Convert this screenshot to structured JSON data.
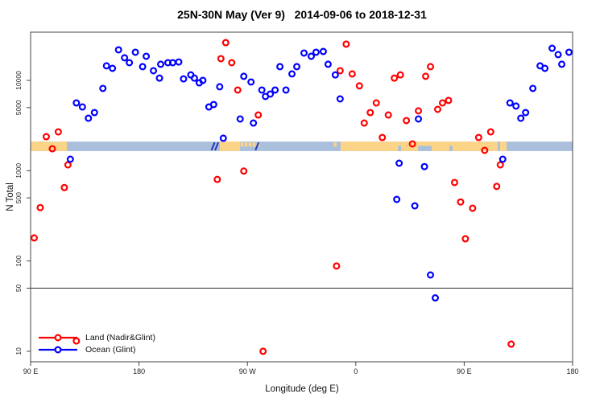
{
  "chart_data": {
    "type": "scatter",
    "title": "25N-30N May (Ver 9)   2014-09-06 to 2018-12-31",
    "xlabel": "Longitude (deg E)",
    "ylabel": "N Total",
    "x_axis": {
      "unit": "degrees east (wrapping)",
      "range_deg": [
        90,
        540
      ],
      "ticks": [
        {
          "deg": 90,
          "label": "90 E"
        },
        {
          "deg": 180,
          "label": "180"
        },
        {
          "deg": 270,
          "label": "90 W"
        },
        {
          "deg": 360,
          "label": "0"
        },
        {
          "deg": 450,
          "label": "90 E"
        },
        {
          "deg": 540,
          "label": "180"
        }
      ]
    },
    "y_axis": {
      "scale": "log10",
      "range": [
        7.6,
        34000
      ],
      "ticks": [
        {
          "v": 10000,
          "label": "10000"
        },
        {
          "v": 5000,
          "label": "5000"
        },
        {
          "v": 1000,
          "label": "1000"
        },
        {
          "v": 500,
          "label": "500"
        },
        {
          "v": 100,
          "label": "100"
        },
        {
          "v": 50,
          "label": "50"
        },
        {
          "v": 10,
          "label": "10"
        }
      ]
    },
    "reference_line_y": 50,
    "legend": [
      {
        "label": "Land (Nadir&Glint)",
        "color": "#ff0000"
      },
      {
        "label": "Ocean (Glint)",
        "color": "#0000ff"
      }
    ],
    "series": [
      {
        "name": "Land (Nadir&Glint)",
        "color": "#ff0000",
        "points": [
          [
            93,
            180
          ],
          [
            98,
            390
          ],
          [
            103,
            2380
          ],
          [
            108,
            1750
          ],
          [
            113,
            2690
          ],
          [
            118,
            650
          ],
          [
            121,
            1160
          ],
          [
            128,
            13
          ],
          [
            245,
            800
          ],
          [
            248,
            17400
          ],
          [
            252,
            26200
          ],
          [
            257,
            15700
          ],
          [
            262,
            7820
          ],
          [
            267,
            990
          ],
          [
            279,
            4140
          ],
          [
            283,
            10
          ],
          [
            344,
            88
          ],
          [
            347,
            12800
          ],
          [
            352,
            25200
          ],
          [
            357,
            11800
          ],
          [
            363,
            8700
          ],
          [
            367,
            3370
          ],
          [
            372,
            4400
          ],
          [
            377,
            5630
          ],
          [
            382,
            2330
          ],
          [
            387,
            4140
          ],
          [
            392,
            10600
          ],
          [
            397,
            11500
          ],
          [
            402,
            3590
          ],
          [
            407,
            1980
          ],
          [
            412,
            4600
          ],
          [
            418,
            11100
          ],
          [
            422,
            14200
          ],
          [
            428,
            4780
          ],
          [
            432,
            5630
          ],
          [
            437,
            6000
          ],
          [
            442,
            740
          ],
          [
            447,
            450
          ],
          [
            451,
            176
          ],
          [
            457,
            384
          ],
          [
            462,
            2330
          ],
          [
            467,
            1680
          ],
          [
            472,
            2690
          ],
          [
            477,
            670
          ],
          [
            480,
            1160
          ],
          [
            489,
            12
          ]
        ]
      },
      {
        "name": "Ocean (Glint)",
        "color": "#0000ff",
        "points": [
          [
            123,
            1340
          ],
          [
            128,
            5630
          ],
          [
            133,
            5080
          ],
          [
            138,
            3810
          ],
          [
            143,
            4400
          ],
          [
            150,
            8150
          ],
          [
            153,
            14500
          ],
          [
            158,
            13600
          ],
          [
            163,
            21800
          ],
          [
            168,
            17800
          ],
          [
            172,
            15700
          ],
          [
            177,
            20500
          ],
          [
            183,
            14200
          ],
          [
            186,
            18500
          ],
          [
            192,
            12800
          ],
          [
            197,
            10600
          ],
          [
            198,
            15100
          ],
          [
            204,
            15700
          ],
          [
            208,
            15700
          ],
          [
            213,
            16000
          ],
          [
            217,
            10400
          ],
          [
            223,
            11500
          ],
          [
            226,
            10600
          ],
          [
            230,
            9400
          ],
          [
            233,
            10000
          ],
          [
            238,
            5080
          ],
          [
            242,
            5400
          ],
          [
            247,
            8500
          ],
          [
            250,
            2290
          ],
          [
            264,
            3740
          ],
          [
            267,
            11100
          ],
          [
            273,
            9600
          ],
          [
            275,
            3370
          ],
          [
            282,
            7820
          ],
          [
            285,
            6640
          ],
          [
            289,
            7060
          ],
          [
            293,
            7820
          ],
          [
            297,
            14200
          ],
          [
            302,
            7820
          ],
          [
            307,
            11800
          ],
          [
            311,
            14200
          ],
          [
            317,
            20100
          ],
          [
            323,
            18500
          ],
          [
            327,
            20500
          ],
          [
            333,
            20900
          ],
          [
            337,
            15100
          ],
          [
            343,
            11500
          ],
          [
            347,
            6240
          ],
          [
            394,
            481
          ],
          [
            396,
            1210
          ],
          [
            409,
            408
          ],
          [
            412,
            3740
          ],
          [
            417,
            1110
          ],
          [
            422,
            70
          ],
          [
            426,
            39
          ],
          [
            482,
            1340
          ],
          [
            488,
            5630
          ],
          [
            493,
            5200
          ],
          [
            497,
            3810
          ],
          [
            501,
            4400
          ],
          [
            507,
            8150
          ],
          [
            513,
            14500
          ],
          [
            517,
            13600
          ],
          [
            523,
            22700
          ],
          [
            528,
            19300
          ],
          [
            531,
            15100
          ],
          [
            537,
            20500
          ]
        ]
      }
    ],
    "map_band": {
      "description": "25N-30N latitude strip map drawn across the plot",
      "value_top": 2100,
      "value_bottom": 1650,
      "ocean_color": "#aabfdc",
      "land_color": "#fbd488",
      "dark_color": "#2638b8",
      "land_segments_deg": [
        [
          90,
          120.1
        ],
        [
          247.1,
          263.9
        ],
        [
          347.4,
          477.8
        ],
        [
          479.8,
          485.2
        ]
      ],
      "island_dots_deg": [
        265.5,
        268.8,
        272.2,
        275.5,
        278.9,
        342.8
      ],
      "water_notches_deg": [
        [
          395,
          397.6
        ],
        [
          411.7,
          423
        ],
        [
          437.7,
          440.4
        ]
      ],
      "dark_marks_deg": [
        241.5,
        244.5,
        278.0
      ]
    },
    "layout": {
      "grid": false,
      "legend_position": "bottom-left inside plot"
    }
  },
  "colors": {
    "land_points": "#ff0000",
    "ocean_points": "#0000ff",
    "axis": "#444444",
    "reference_line": "#333333"
  }
}
